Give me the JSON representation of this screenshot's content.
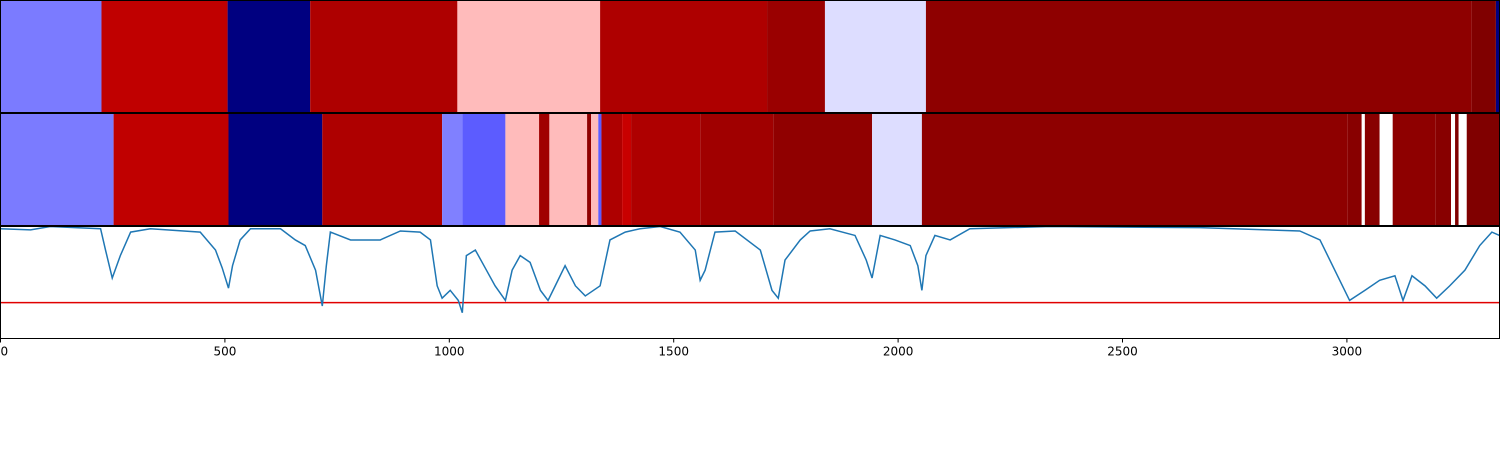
{
  "chart_data": [
    {
      "type": "segments",
      "xlim": [
        0,
        3340
      ],
      "segments": [
        {
          "start": 0,
          "end": 225,
          "color": "#7b7bff"
        },
        {
          "start": 225,
          "end": 506,
          "color": "#c00000"
        },
        {
          "start": 506,
          "end": 690,
          "color": "#000080"
        },
        {
          "start": 690,
          "end": 1018,
          "color": "#ae0000"
        },
        {
          "start": 1018,
          "end": 1336,
          "color": "#ffbbbb"
        },
        {
          "start": 1336,
          "end": 1708,
          "color": "#ae0000"
        },
        {
          "start": 1708,
          "end": 1837,
          "color": "#9a0000"
        },
        {
          "start": 1837,
          "end": 2062,
          "color": "#ddddff"
        },
        {
          "start": 2062,
          "end": 3278,
          "color": "#8e0000"
        },
        {
          "start": 3278,
          "end": 3332,
          "color": "#800000"
        },
        {
          "start": 3332,
          "end": 3340,
          "color": "#000080"
        }
      ]
    },
    {
      "type": "segments",
      "xlim": [
        0,
        3340
      ],
      "segments": [
        {
          "start": 0,
          "end": 252,
          "color": "#7b7bff"
        },
        {
          "start": 252,
          "end": 508,
          "color": "#c00000"
        },
        {
          "start": 508,
          "end": 717,
          "color": "#000080"
        },
        {
          "start": 717,
          "end": 984,
          "color": "#ae0000"
        },
        {
          "start": 984,
          "end": 1029,
          "color": "#8080ff"
        },
        {
          "start": 1029,
          "end": 1125,
          "color": "#5c5cff"
        },
        {
          "start": 1125,
          "end": 1200,
          "color": "#ffbbbb"
        },
        {
          "start": 1200,
          "end": 1223,
          "color": "#a00000"
        },
        {
          "start": 1223,
          "end": 1307,
          "color": "#ffbbbb"
        },
        {
          "start": 1307,
          "end": 1316,
          "color": "#900000"
        },
        {
          "start": 1316,
          "end": 1332,
          "color": "#ffbbbb"
        },
        {
          "start": 1332,
          "end": 1339,
          "color": "#5c5cff"
        },
        {
          "start": 1339,
          "end": 1385,
          "color": "#ae0000"
        },
        {
          "start": 1385,
          "end": 1405,
          "color": "#c80000"
        },
        {
          "start": 1405,
          "end": 1559,
          "color": "#ae0000"
        },
        {
          "start": 1559,
          "end": 1722,
          "color": "#a00000"
        },
        {
          "start": 1722,
          "end": 1942,
          "color": "#900000"
        },
        {
          "start": 1942,
          "end": 2053,
          "color": "#ddddff"
        },
        {
          "start": 2053,
          "end": 3002,
          "color": "#8e0000"
        },
        {
          "start": 3002,
          "end": 3033,
          "color": "#880000"
        },
        {
          "start": 3033,
          "end": 3040,
          "color": "#ffffff"
        },
        {
          "start": 3040,
          "end": 3073,
          "color": "#880000"
        },
        {
          "start": 3073,
          "end": 3102,
          "color": "#ffffff"
        },
        {
          "start": 3102,
          "end": 3198,
          "color": "#8e0000"
        },
        {
          "start": 3198,
          "end": 3232,
          "color": "#880000"
        },
        {
          "start": 3232,
          "end": 3241,
          "color": "#ffffff"
        },
        {
          "start": 3241,
          "end": 3249,
          "color": "#800000"
        },
        {
          "start": 3249,
          "end": 3267,
          "color": "#ffffff"
        },
        {
          "start": 3267,
          "end": 3340,
          "color": "#800000"
        }
      ]
    },
    {
      "type": "line",
      "xlim": [
        0,
        3340
      ],
      "xticks": [
        0,
        500,
        1000,
        1500,
        2000,
        2500,
        3000
      ],
      "ylim": [
        0,
        1
      ],
      "color": "#1f77b4",
      "threshold": 0.32,
      "threshold_color": "#e00000",
      "x": [
        0,
        67,
        111,
        223,
        234,
        249,
        267,
        290,
        334,
        445,
        479,
        494,
        508,
        517,
        534,
        557,
        624,
        657,
        679,
        702,
        717,
        726,
        735,
        780,
        846,
        891,
        935,
        958,
        973,
        984,
        1002,
        1020,
        1029,
        1038,
        1058,
        1080,
        1102,
        1125,
        1140,
        1158,
        1180,
        1203,
        1220,
        1236,
        1258,
        1281,
        1303,
        1336,
        1358,
        1392,
        1425,
        1470,
        1514,
        1548,
        1559,
        1570,
        1592,
        1637,
        1693,
        1719,
        1733,
        1748,
        1782,
        1804,
        1848,
        1904,
        1929,
        1942,
        1960,
        1993,
        2027,
        2044,
        2053,
        2062,
        2082,
        2116,
        2160,
        2338,
        2672,
        2895,
        2940,
        2973,
        3006,
        3040,
        3073,
        3107,
        3125,
        3145,
        3174,
        3200,
        3229,
        3263,
        3296,
        3323,
        3340
      ],
      "values": [
        0.98,
        0.97,
        1,
        0.98,
        0.79,
        0.54,
        0.74,
        0.95,
        0.98,
        0.95,
        0.79,
        0.63,
        0.45,
        0.65,
        0.88,
        0.98,
        0.98,
        0.88,
        0.83,
        0.61,
        0.29,
        0.65,
        0.95,
        0.88,
        0.88,
        0.96,
        0.95,
        0.88,
        0.47,
        0.36,
        0.43,
        0.34,
        0.23,
        0.74,
        0.79,
        0.63,
        0.47,
        0.34,
        0.61,
        0.74,
        0.68,
        0.43,
        0.34,
        0.47,
        0.65,
        0.47,
        0.38,
        0.47,
        0.88,
        0.95,
        0.98,
        1,
        0.95,
        0.79,
        0.52,
        0.61,
        0.95,
        0.96,
        0.79,
        0.43,
        0.36,
        0.7,
        0.88,
        0.96,
        0.98,
        0.92,
        0.7,
        0.54,
        0.92,
        0.88,
        0.83,
        0.65,
        0.43,
        0.74,
        0.92,
        0.88,
        0.98,
        1,
        0.99,
        0.96,
        0.88,
        0.61,
        0.34,
        0.43,
        0.52,
        0.56,
        0.34,
        0.56,
        0.47,
        0.36,
        0.47,
        0.61,
        0.83,
        0.95,
        0.92
      ]
    }
  ]
}
